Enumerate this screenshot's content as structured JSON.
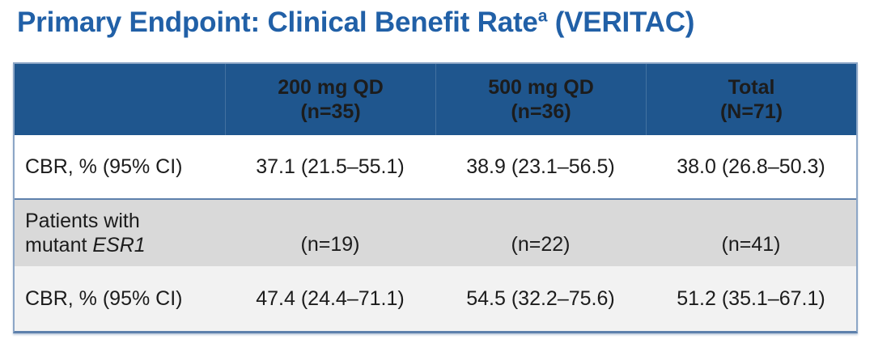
{
  "title": {
    "text": "Primary Endpoint: Clinical Benefit Rate",
    "superscript": "a",
    "suffix": " (VERITAC)"
  },
  "colors": {
    "title_blue": "#2160A7",
    "header_bg": "#1F568E",
    "header_text": "#FFFFFF",
    "row_white": "#FFFFFF",
    "row_gray": "#D9D9D9",
    "row_light_gray": "#F2F2F2",
    "border_steel_blue": "#5E81AC",
    "border_light_blue": "#8CA6C6",
    "body_text": "#1C1C1C"
  },
  "table": {
    "header": {
      "col2": {
        "line1": "200 mg QD",
        "line2": "(n=35)"
      },
      "col3": {
        "line1": "500 mg QD",
        "line2": "(n=36)"
      },
      "col4": {
        "line1": "Total",
        "line2": "(N=71)"
      }
    },
    "rows": [
      {
        "label": "CBR, % (95% CI)",
        "c2": "37.1 (21.5–55.1)",
        "c3": "38.9 (23.1–56.5)",
        "c4": "38.0 (26.8–50.3)"
      },
      {
        "label_line1": "Patients with",
        "label_line2_prefix": "mutant ",
        "label_gene": "ESR1",
        "c2": "(n=19)",
        "c3": "(n=22)",
        "c4": "(n=41)"
      },
      {
        "label": "CBR, % (95% CI)",
        "c2": "47.4 (24.4–71.1)",
        "c3": "54.5 (32.2–75.6)",
        "c4": "51.2 (35.1–67.1)"
      }
    ]
  },
  "chart_data": {
    "type": "table",
    "title": "Primary Endpoint: Clinical Benefit Rateᵃ (VERITAC)",
    "columns": [
      "",
      "200 mg QD (n=35)",
      "500 mg QD (n=36)",
      "Total (N=71)"
    ],
    "rows": [
      [
        "CBR, % (95% CI)",
        "37.1 (21.5–55.1)",
        "38.9 (23.1–56.5)",
        "38.0 (26.8–50.3)"
      ],
      [
        "Patients with mutant ESR1",
        "(n=19)",
        "(n=22)",
        "(n=41)"
      ],
      [
        "CBR, % (95% CI)",
        "47.4 (24.4–71.1)",
        "54.5 (32.2–75.6)",
        "51.2 (35.1–67.1)"
      ]
    ],
    "notes": {
      "cbr_percent": {
        "200mg": 37.1,
        "500mg": 38.9,
        "total": 38.0
      },
      "cbr_percent_mutant_esr1": {
        "200mg": 47.4,
        "500mg": 54.5,
        "total": 51.2
      }
    }
  }
}
